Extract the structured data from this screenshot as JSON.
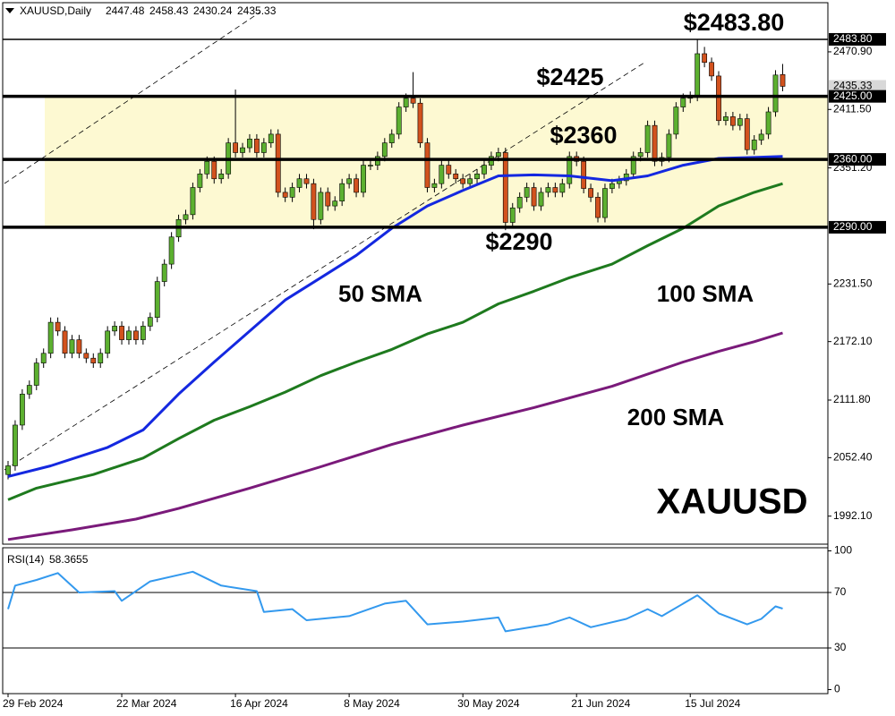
{
  "chart_data": [
    {
      "type": "candlestick",
      "title": "XAUUSD,Daily",
      "watermark": "XAUUSD",
      "categories": [
        "29 Feb 2024",
        null,
        null,
        null,
        null,
        null,
        null,
        null,
        null,
        null,
        null,
        null,
        null,
        null,
        null,
        null,
        "22 Mar 2024",
        null,
        null,
        null,
        null,
        null,
        null,
        null,
        null,
        null,
        null,
        null,
        null,
        null,
        null,
        null,
        "16 Apr 2024",
        null,
        null,
        null,
        null,
        null,
        null,
        null,
        null,
        null,
        null,
        null,
        null,
        null,
        null,
        null,
        "8 May 2024",
        null,
        null,
        null,
        null,
        null,
        null,
        null,
        null,
        null,
        null,
        null,
        null,
        null,
        null,
        null,
        "30 May 2024",
        null,
        null,
        null,
        null,
        null,
        null,
        null,
        null,
        null,
        null,
        null,
        null,
        null,
        null,
        null,
        "21 Jun 2024",
        null,
        null,
        null,
        null,
        null,
        null,
        null,
        null,
        null,
        null,
        null,
        null,
        null,
        null,
        null,
        "15 Jul 2024",
        null,
        null,
        null,
        null,
        null,
        null,
        null,
        null,
        null,
        null,
        null,
        null,
        null
      ],
      "open": [
        2035,
        2044,
        2086,
        2118,
        2127,
        2150,
        2160,
        2192,
        2183,
        2160,
        2174,
        2160,
        2155,
        2150,
        2160,
        2183,
        2188,
        2174,
        2183,
        2174,
        2188,
        2197,
        2234,
        2252,
        2280,
        2298,
        2303,
        2331,
        2345,
        2358,
        2340,
        2345,
        2377,
        2367,
        2372,
        2381,
        2367,
        2377,
        2386,
        2326,
        2321,
        2331,
        2340,
        2335,
        2298,
        2326,
        2312,
        2317,
        2335,
        2340,
        2326,
        2354,
        2354,
        2363,
        2377,
        2386,
        2414,
        2423,
        2418,
        2377,
        2331,
        2335,
        2354,
        2345,
        2340,
        2335,
        2340,
        2345,
        2354,
        2363,
        2367,
        2295,
        2310,
        2321,
        2331,
        2312,
        2326,
        2331,
        2326,
        2335,
        2363,
        2358,
        2330,
        2321,
        2300,
        2330,
        2335,
        2338,
        2345,
        2363,
        2367,
        2395,
        2358,
        2362,
        2386,
        2414,
        2423,
        2425,
        2469,
        2460,
        2446,
        2400,
        2404,
        2395,
        2402,
        2370,
        2380,
        2386,
        2409,
        2447.48
      ],
      "high": [
        2049,
        2091,
        2123,
        2132,
        2155,
        2165,
        2197,
        2197,
        2188,
        2179,
        2179,
        2165,
        2160,
        2165,
        2188,
        2193,
        2193,
        2188,
        2188,
        2193,
        2202,
        2239,
        2257,
        2285,
        2303,
        2308,
        2336,
        2350,
        2363,
        2363,
        2350,
        2382,
        2432,
        2377,
        2386,
        2386,
        2382,
        2391,
        2391,
        2331,
        2336,
        2345,
        2345,
        2340,
        2331,
        2331,
        2322,
        2340,
        2345,
        2345,
        2359,
        2359,
        2368,
        2382,
        2391,
        2419,
        2428,
        2450,
        2423,
        2382,
        2340,
        2359,
        2359,
        2350,
        2345,
        2345,
        2350,
        2359,
        2368,
        2372,
        2372,
        2315,
        2326,
        2336,
        2336,
        2331,
        2336,
        2336,
        2340,
        2368,
        2368,
        2363,
        2335,
        2326,
        2335,
        2340,
        2343,
        2350,
        2368,
        2372,
        2400,
        2400,
        2367,
        2391,
        2419,
        2428,
        2430,
        2484,
        2476,
        2465,
        2451,
        2409,
        2409,
        2407,
        2407,
        2385,
        2391,
        2414,
        2452,
        2458.43
      ],
      "low": [
        2030,
        2039,
        2081,
        2113,
        2122,
        2145,
        2155,
        2178,
        2155,
        2155,
        2155,
        2150,
        2145,
        2145,
        2155,
        2178,
        2169,
        2169,
        2169,
        2169,
        2183,
        2192,
        2229,
        2247,
        2275,
        2293,
        2298,
        2326,
        2340,
        2335,
        2335,
        2340,
        2362,
        2362,
        2367,
        2362,
        2362,
        2372,
        2321,
        2316,
        2316,
        2326,
        2330,
        2288,
        2293,
        2307,
        2307,
        2312,
        2330,
        2321,
        2321,
        2349,
        2349,
        2358,
        2372,
        2381,
        2409,
        2413,
        2372,
        2326,
        2326,
        2330,
        2340,
        2335,
        2330,
        2330,
        2335,
        2340,
        2349,
        2358,
        2287,
        2290,
        2305,
        2316,
        2307,
        2307,
        2321,
        2321,
        2321,
        2330,
        2353,
        2325,
        2316,
        2295,
        2295,
        2325,
        2330,
        2333,
        2340,
        2358,
        2362,
        2353,
        2353,
        2357,
        2381,
        2409,
        2418,
        2420,
        2455,
        2441,
        2395,
        2395,
        2390,
        2390,
        2365,
        2365,
        2375,
        2381,
        2404,
        2430.24
      ],
      "close": [
        2044,
        2086,
        2118,
        2127,
        2150,
        2160,
        2192,
        2183,
        2160,
        2174,
        2160,
        2155,
        2150,
        2160,
        2183,
        2188,
        2174,
        2183,
        2174,
        2188,
        2197,
        2234,
        2252,
        2280,
        2298,
        2303,
        2331,
        2345,
        2358,
        2340,
        2345,
        2377,
        2367,
        2372,
        2381,
        2367,
        2377,
        2386,
        2326,
        2321,
        2331,
        2340,
        2335,
        2298,
        2326,
        2312,
        2317,
        2335,
        2340,
        2326,
        2354,
        2354,
        2363,
        2377,
        2386,
        2414,
        2423,
        2418,
        2377,
        2331,
        2335,
        2354,
        2345,
        2340,
        2335,
        2340,
        2345,
        2354,
        2363,
        2367,
        2295,
        2310,
        2321,
        2331,
        2312,
        2326,
        2331,
        2326,
        2335,
        2363,
        2358,
        2330,
        2321,
        2300,
        2330,
        2335,
        2338,
        2345,
        2363,
        2367,
        2395,
        2358,
        2362,
        2386,
        2414,
        2423,
        2425,
        2469,
        2460,
        2446,
        2400,
        2404,
        2395,
        2402,
        2370,
        2380,
        2386,
        2409,
        2447,
        2435.33
      ],
      "up_color": "#5cb030",
      "down_color": "#d2521e",
      "ylim": [
        1963.2,
        2521.6
      ],
      "yticks": [
        {
          "value": 1992.1,
          "label": "1992.10"
        },
        {
          "value": 2052.4,
          "label": "2052.40"
        },
        {
          "value": 2111.8,
          "label": "2111.80"
        },
        {
          "value": 2172.1,
          "label": "2172.10"
        },
        {
          "value": 2231.5,
          "label": "2231.50"
        },
        {
          "value": 2351.2,
          "label": "2351.20"
        },
        {
          "value": 2411.5,
          "label": "2411.50"
        },
        {
          "value": 2470.9,
          "label": "2470.90"
        }
      ],
      "grid": false,
      "levels": [
        {
          "value": 2483.8,
          "label": "2483.80",
          "annotation": "$2483.80"
        },
        {
          "value": 2425,
          "label": "2425.00",
          "annotation": "$2425"
        },
        {
          "value": 2360,
          "label": "2360.00",
          "annotation": "$2360"
        },
        {
          "value": 2290,
          "label": "2290.00",
          "annotation": "$2290"
        }
      ],
      "overlays": [
        {
          "name": "50 SMA",
          "color": "#1428e0",
          "x": [
            0,
            6,
            14,
            19,
            24,
            29,
            34,
            39,
            44,
            49,
            54,
            59,
            64,
            69,
            74,
            79,
            85,
            90,
            95,
            100,
            105,
            109
          ],
          "values": [
            2033,
            2044,
            2063,
            2081,
            2118,
            2151,
            2183,
            2215,
            2238,
            2261,
            2289,
            2312,
            2328,
            2343,
            2344,
            2343,
            2338,
            2343,
            2354,
            2361,
            2362,
            2363
          ]
        },
        {
          "name": "100 SMA",
          "color": "#1e7a1e",
          "x": [
            0,
            4,
            12,
            19,
            24,
            29,
            34,
            39,
            44,
            49,
            54,
            59,
            64,
            69,
            74,
            79,
            85,
            90,
            95,
            100,
            105,
            109
          ],
          "values": [
            2009,
            2021,
            2035,
            2052,
            2072,
            2091,
            2105,
            2120,
            2137,
            2151,
            2164,
            2180,
            2192,
            2211,
            2224,
            2238,
            2252,
            2271,
            2289,
            2312,
            2326,
            2335
          ]
        },
        {
          "name": "200 SMA",
          "color": "#7a1a7a",
          "x": [
            0,
            9,
            18,
            24,
            34,
            44,
            54,
            64,
            74,
            85,
            95,
            100,
            105,
            109
          ],
          "values": [
            1968,
            1978,
            1989,
            2000,
            2021,
            2043,
            2066,
            2086,
            2104,
            2126,
            2151,
            2162,
            2172,
            2181
          ]
        }
      ]
    },
    {
      "type": "line",
      "title": "RSI(14)",
      "color": "#3399ee",
      "x": [
        0,
        1,
        4,
        7,
        10,
        15,
        16,
        20,
        26,
        30,
        35,
        36,
        40,
        42,
        48,
        53,
        56,
        59,
        64,
        69,
        70,
        76,
        79,
        82,
        87,
        90,
        92,
        97,
        100,
        104,
        106,
        108,
        109
      ],
      "values": [
        58,
        75,
        79,
        84,
        70,
        71,
        64,
        78,
        85,
        75,
        71,
        56,
        58,
        50,
        53,
        62,
        64,
        47,
        49,
        52,
        42,
        47,
        52,
        45,
        51,
        58,
        53,
        68,
        55,
        47,
        51,
        60,
        58.3655
      ],
      "ylim": [
        0,
        100
      ],
      "yticks": [
        0,
        30,
        70,
        100
      ],
      "levels": [
        30,
        70
      ]
    }
  ]
}
